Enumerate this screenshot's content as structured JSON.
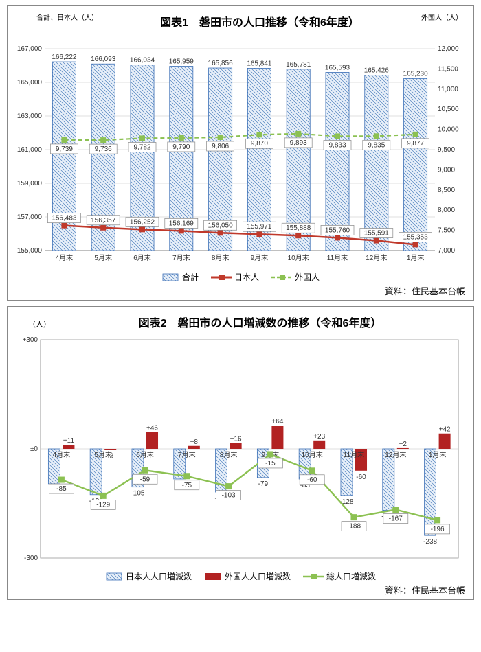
{
  "chart1": {
    "title": "図表1　磐田市の人口推移（令和6年度）",
    "left_label": "合計、日本人（人）",
    "right_label": "外国人（人）",
    "source": "資料：住民基本台帳",
    "categories": [
      "4月末",
      "5月末",
      "6月末",
      "7月末",
      "8月末",
      "9月末",
      "10月末",
      "11月末",
      "12月末",
      "1月末"
    ],
    "total": [
      166222,
      166093,
      166034,
      165959,
      165856,
      165841,
      165781,
      165593,
      165426,
      165230
    ],
    "japanese": [
      156483,
      156357,
      156252,
      156169,
      156050,
      155971,
      155888,
      155760,
      155591,
      155353
    ],
    "foreign": [
      9739,
      9736,
      9782,
      9790,
      9806,
      9870,
      9893,
      9833,
      9835,
      9877
    ],
    "left_ylim": [
      155000,
      167000
    ],
    "left_step": 2000,
    "right_ylim": [
      7000,
      12000
    ],
    "right_step": 500,
    "colors": {
      "bar": "#4f81bd",
      "japanese": "#c0392b",
      "foreign": "#8cc152",
      "grid": "#bfbfbf",
      "axis": "#808080"
    },
    "legend": {
      "total": "合計",
      "japanese": "日本人",
      "foreign": "外国人"
    }
  },
  "chart2": {
    "title": "図表2　磐田市の人口増減数の推移（令和6年度）",
    "y_label": "（人）",
    "source": "資料：住民基本台帳",
    "categories": [
      "4月末",
      "5月末",
      "6月末",
      "7月末",
      "8月末",
      "9月末",
      "10月末",
      "11月末",
      "12月末",
      "1月末"
    ],
    "japanese_delta": [
      -96,
      -126,
      -105,
      -83,
      -119,
      -79,
      -83,
      -128,
      -169,
      -238
    ],
    "foreign_delta": [
      11,
      -3,
      46,
      8,
      16,
      64,
      23,
      -60,
      2,
      42
    ],
    "total_delta": [
      -85,
      -129,
      -59,
      -75,
      -103,
      -15,
      -60,
      -188,
      -167,
      -196
    ],
    "ylim": [
      -300,
      300
    ],
    "zero_label": "±0",
    "colors": {
      "japanese_bar": "#4f81bd",
      "foreign_bar": "#b22222",
      "total_line": "#8cc152",
      "grid": "#bfbfbf"
    },
    "legend": {
      "japanese": "日本人人口増減数",
      "foreign": "外国人人口増減数",
      "total": "総人口増減数"
    }
  }
}
